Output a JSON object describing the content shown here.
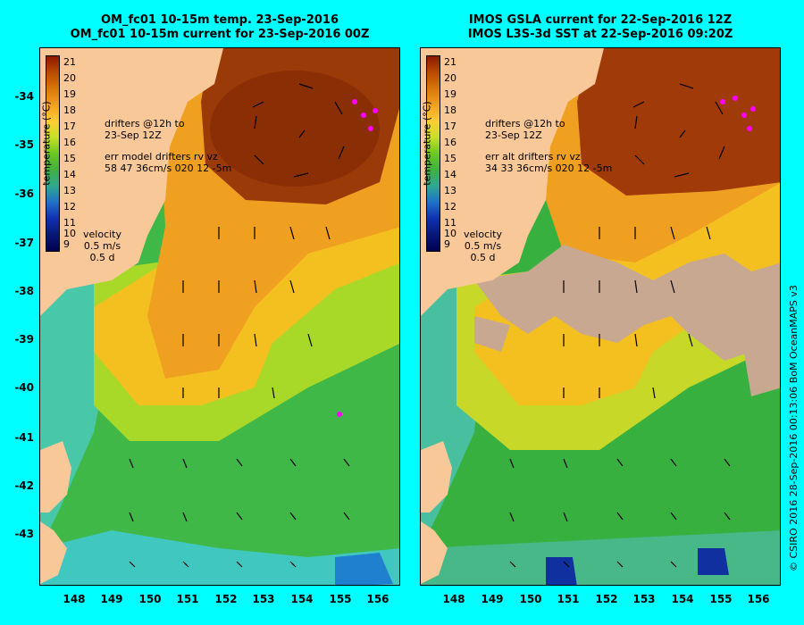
{
  "left_panel": {
    "title_line1": "OM_fc01 10-15m temp. 23-Sep-2016",
    "title_line2": "OM_fc01 10-15m current for 23-Sep-2016 00Z",
    "drifter_note_line1": "drifters @12h to",
    "drifter_note_line2": "23-Sep 12Z",
    "error_line1": "err model drifters rv vz",
    "error_line2": "58 47 36cm/s 020 12 -5m",
    "velocity_label": "velocity",
    "velocity_value": "0.5 m/s",
    "velocity_time": "0.5 d"
  },
  "right_panel": {
    "title_line1": "IMOS GSLA current for 22-Sep-2016 12Z",
    "title_line2": "IMOS L3S-3d SST at 22-Sep-2016 09:20Z",
    "drifter_note_line1": "drifters @12h to",
    "drifter_note_line2": "23-Sep 12Z",
    "error_line1": "err alt drifters rv vz",
    "error_line2": "34 33 36cm/s 020 12 -5m",
    "velocity_label": "velocity",
    "velocity_value": "0.5 m/s",
    "velocity_time": "0.5 d"
  },
  "colorbar": {
    "title": "temperature (°C)",
    "labels": [
      "21",
      "20",
      "19",
      "18",
      "17",
      "16",
      "15",
      "14",
      "13",
      "12",
      "11",
      "10",
      "9"
    ],
    "colors": [
      "#8b1a00",
      "#b84a00",
      "#d8770a",
      "#f0a020",
      "#ffcc33",
      "#c8e028",
      "#6cc820",
      "#40b040",
      "#30a890",
      "#2070c8",
      "#1030b0",
      "#081878",
      "#000050"
    ]
  },
  "y_axis_labels": [
    "-34",
    "-35",
    "-36",
    "-37",
    "-38",
    "-39",
    "-40",
    "-41",
    "-42",
    "-43"
  ],
  "x_axis_labels": [
    "148",
    "149",
    "150",
    "151",
    "152",
    "153",
    "154",
    "155",
    "156"
  ],
  "credit": "© CSIRO 2016  28-Sep-2016 00:13:06 BoM OceanMAPS v3",
  "colors": {
    "background": "#00ffff",
    "land": "#f8c898",
    "warm_core": "#9a3000",
    "orange": "#f0a020",
    "yellow": "#f4d020",
    "green": "#40b040",
    "teal": "#40c8a0",
    "cloud": "#c8a890",
    "drifter": "#ff00ff"
  }
}
